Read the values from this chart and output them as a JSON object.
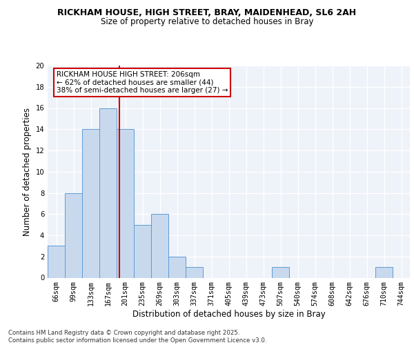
{
  "title1": "RICKHAM HOUSE, HIGH STREET, BRAY, MAIDENHEAD, SL6 2AH",
  "title2": "Size of property relative to detached houses in Bray",
  "xlabel": "Distribution of detached houses by size in Bray",
  "ylabel": "Number of detached properties",
  "bar_labels": [
    "66sqm",
    "99sqm",
    "133sqm",
    "167sqm",
    "201sqm",
    "235sqm",
    "269sqm",
    "303sqm",
    "337sqm",
    "371sqm",
    "405sqm",
    "439sqm",
    "473sqm",
    "507sqm",
    "540sqm",
    "574sqm",
    "608sqm",
    "642sqm",
    "676sqm",
    "710sqm",
    "744sqm"
  ],
  "bar_values": [
    3,
    8,
    14,
    16,
    14,
    5,
    6,
    2,
    1,
    0,
    0,
    0,
    0,
    1,
    0,
    0,
    0,
    0,
    0,
    1,
    0
  ],
  "bar_color": "#c9d9ed",
  "bar_edgecolor": "#5b9bd5",
  "vline_color": "#cc0000",
  "annotation_text": "RICKHAM HOUSE HIGH STREET: 206sqm\n← 62% of detached houses are smaller (44)\n38% of semi-detached houses are larger (27) →",
  "annotation_box_edgecolor": "#cc0000",
  "ylim": [
    0,
    20
  ],
  "yticks": [
    0,
    2,
    4,
    6,
    8,
    10,
    12,
    14,
    16,
    18,
    20
  ],
  "footer_line1": "Contains HM Land Registry data © Crown copyright and database right 2025.",
  "footer_line2": "Contains public sector information licensed under the Open Government Licence v3.0.",
  "bg_color": "#eef2f9",
  "grid_color": "#ffffff"
}
